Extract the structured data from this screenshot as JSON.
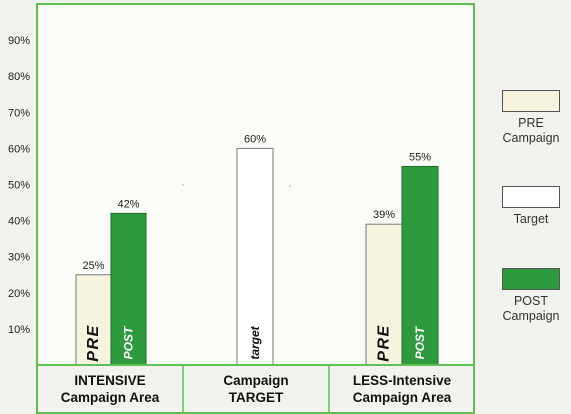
{
  "chart_data": {
    "type": "bar",
    "categories": [
      [
        "INTENSIVE",
        "Campaign Area"
      ],
      [
        "Campaign",
        "TARGET"
      ],
      [
        "LESS-Intensive",
        "Campaign Area"
      ]
    ],
    "bars": [
      {
        "category": 0,
        "series": "PRE",
        "value": 25,
        "label": "25%",
        "text": "PRE"
      },
      {
        "category": 0,
        "series": "POST",
        "value": 42,
        "label": "42%",
        "text": "POST"
      },
      {
        "category": 1,
        "series": "Target",
        "value": 60,
        "label": "60%",
        "text": "target"
      },
      {
        "category": 2,
        "series": "PRE",
        "value": 39,
        "label": "39%",
        "text": "PRE"
      },
      {
        "category": 2,
        "series": "POST",
        "value": 55,
        "label": "55%",
        "text": "POST"
      }
    ],
    "yticks": [
      "10%",
      "20%",
      "30%",
      "40%",
      "50%",
      "60%",
      "70%",
      "80%",
      "90%"
    ],
    "ylim": [
      0,
      100
    ],
    "legend": {
      "position": "right",
      "items": [
        {
          "series": "PRE",
          "lines": [
            "PRE",
            "Campaign"
          ]
        },
        {
          "series": "Target",
          "lines": [
            "Target"
          ]
        },
        {
          "series": "POST",
          "lines": [
            "POST",
            "Campaign"
          ]
        }
      ]
    },
    "colors": {
      "PRE": "#f6f4de",
      "Target": "#ffffff",
      "POST": "#2e9a3e",
      "frame": "#5fbf55",
      "bar_text_pre": "#111111",
      "bar_text_post": "#ffffff"
    }
  }
}
